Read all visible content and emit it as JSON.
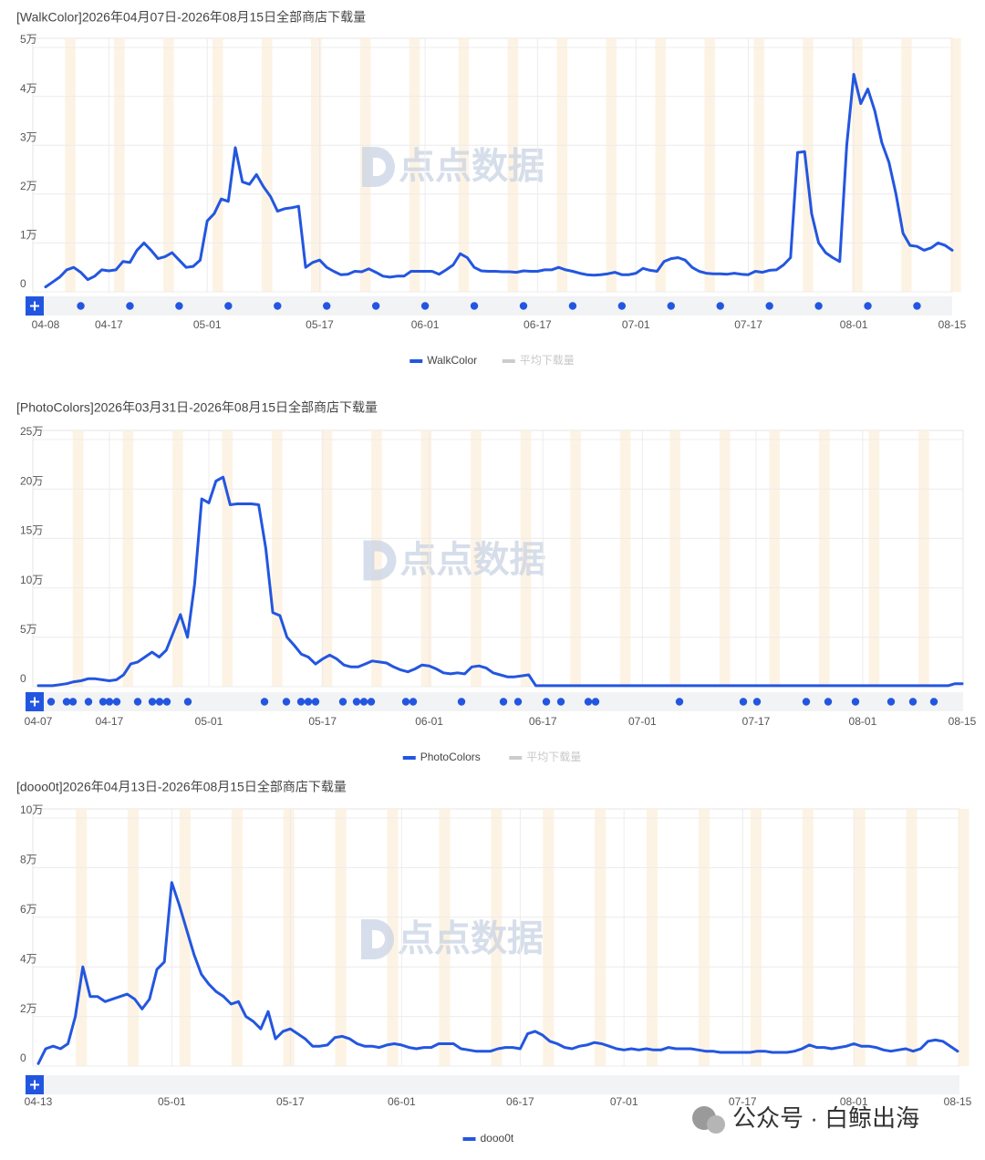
{
  "chart_data": [
    {
      "type": "line",
      "title": "[WalkColor]2026年04月07日-2026年08月15日全部商店下载量",
      "watermark": "点点数据",
      "categories": [
        "04-08",
        null,
        null,
        null,
        null,
        null,
        null,
        null,
        null,
        "04-17",
        null,
        null,
        null,
        null,
        null,
        null,
        null,
        null,
        null,
        null,
        null,
        null,
        null,
        "05-01",
        null,
        null,
        null,
        null,
        null,
        null,
        null,
        null,
        null,
        null,
        null,
        null,
        null,
        null,
        null,
        "05-17",
        null,
        null,
        null,
        null,
        null,
        null,
        null,
        null,
        null,
        null,
        null,
        null,
        null,
        null,
        "06-01",
        null,
        null,
        null,
        null,
        null,
        null,
        null,
        null,
        null,
        null,
        null,
        null,
        null,
        null,
        null,
        "06-17",
        null,
        null,
        null,
        null,
        null,
        null,
        null,
        null,
        null,
        null,
        null,
        null,
        null,
        "07-01",
        null,
        null,
        null,
        null,
        null,
        null,
        null,
        null,
        null,
        null,
        null,
        null,
        null,
        null,
        null,
        "07-17",
        null,
        null,
        null,
        null,
        null,
        null,
        null,
        null,
        null,
        null,
        null,
        null,
        null,
        null,
        "08-01",
        null,
        null,
        null,
        null,
        null,
        null,
        null,
        null,
        null,
        null,
        null,
        null,
        null,
        "08-15"
      ],
      "series": [
        {
          "name": "WalkColor",
          "color": "#2356e0",
          "values": [
            0.1,
            0.2,
            0.3,
            0.45,
            0.5,
            0.4,
            0.25,
            0.32,
            0.45,
            0.43,
            0.45,
            0.62,
            0.6,
            0.85,
            1.0,
            0.85,
            0.68,
            0.72,
            0.8,
            0.65,
            0.5,
            0.52,
            0.65,
            1.45,
            1.6,
            1.9,
            1.85,
            2.95,
            2.25,
            2.2,
            2.4,
            2.15,
            1.95,
            1.65,
            1.7,
            1.72,
            1.75,
            0.5,
            0.6,
            0.65,
            0.5,
            0.42,
            0.35,
            0.36,
            0.42,
            0.41,
            0.47,
            0.4,
            0.32,
            0.3,
            0.32,
            0.32,
            0.42,
            0.42,
            0.42,
            0.42,
            0.36,
            0.45,
            0.55,
            0.78,
            0.7,
            0.5,
            0.43,
            0.42,
            0.42,
            0.41,
            0.41,
            0.4,
            0.43,
            0.42,
            0.42,
            0.45,
            0.45,
            0.5,
            0.45,
            0.42,
            0.38,
            0.35,
            0.34,
            0.35,
            0.37,
            0.4,
            0.35,
            0.35,
            0.38,
            0.48,
            0.44,
            0.42,
            0.62,
            0.68,
            0.7,
            0.65,
            0.5,
            0.42,
            0.38,
            0.37,
            0.37,
            0.36,
            0.38,
            0.36,
            0.35,
            0.42,
            0.4,
            0.44,
            0.45,
            0.55,
            0.7,
            2.85,
            2.87,
            1.6,
            1.0,
            0.8,
            0.7,
            0.62,
            3.0,
            4.45,
            3.85,
            4.15,
            3.7,
            3.05,
            2.65,
            2.0,
            1.2,
            0.95,
            0.93,
            0.85,
            0.9,
            1.0,
            0.95,
            0.85
          ]
        }
      ],
      "inactive_legend": {
        "name": "平均下载量",
        "color": "#cccccc"
      },
      "ylim": [
        0,
        5
      ],
      "yticks": [
        0,
        {
          "value": 1,
          "label": "1万"
        },
        {
          "value": 2,
          "label": "2万"
        },
        {
          "value": 3,
          "label": "3万"
        },
        {
          "value": 4,
          "label": "4万"
        },
        {
          "value": 5,
          "label": "5万"
        }
      ],
      "grid": true
    },
    {
      "type": "line",
      "title": "[PhotoColors]2026年03月31日-2026年08月15日全部商店下载量",
      "watermark": "点点数据",
      "categories": [
        "04-07",
        null,
        null,
        null,
        null,
        null,
        null,
        null,
        null,
        null,
        "04-17",
        null,
        null,
        null,
        null,
        null,
        null,
        null,
        null,
        null,
        null,
        null,
        null,
        null,
        "05-01",
        null,
        null,
        null,
        null,
        null,
        null,
        null,
        null,
        null,
        null,
        null,
        null,
        null,
        null,
        null,
        "05-17",
        null,
        null,
        null,
        null,
        null,
        null,
        null,
        null,
        null,
        null,
        null,
        null,
        null,
        null,
        "06-01",
        null,
        null,
        null,
        null,
        null,
        null,
        null,
        null,
        null,
        null,
        null,
        null,
        null,
        null,
        null,
        "06-17",
        null,
        null,
        null,
        null,
        null,
        null,
        null,
        null,
        null,
        null,
        null,
        null,
        null,
        "07-01",
        null,
        null,
        null,
        null,
        null,
        null,
        null,
        null,
        null,
        null,
        null,
        null,
        null,
        null,
        null,
        "07-17",
        null,
        null,
        null,
        null,
        null,
        null,
        null,
        null,
        null,
        null,
        null,
        null,
        null,
        null,
        "08-01",
        null,
        null,
        null,
        null,
        null,
        null,
        null,
        null,
        null,
        null,
        null,
        null,
        null,
        "08-15"
      ],
      "series": [
        {
          "name": "PhotoColors",
          "color": "#2356e0",
          "values": [
            0.1,
            0.1,
            0.1,
            0.2,
            0.3,
            0.5,
            0.6,
            0.8,
            0.8,
            0.7,
            0.6,
            0.7,
            1.2,
            2.3,
            2.5,
            3.0,
            3.5,
            3.0,
            3.7,
            5.5,
            7.3,
            5.0,
            10.4,
            19.0,
            18.6,
            20.8,
            21.2,
            18.4,
            18.5,
            18.5,
            18.5,
            18.4,
            14.0,
            7.5,
            7.2,
            5.0,
            4.2,
            3.3,
            3.0,
            2.3,
            2.8,
            3.2,
            2.8,
            2.2,
            2.0,
            2.0,
            2.3,
            2.6,
            2.5,
            2.4,
            2.0,
            1.7,
            1.5,
            1.8,
            2.2,
            2.1,
            1.8,
            1.4,
            1.3,
            1.4,
            1.3,
            2.0,
            2.1,
            1.9,
            1.4,
            1.2,
            1.0,
            1.0,
            1.1,
            1.2,
            0.1,
            0.1,
            0.1,
            0.1,
            0.1,
            0.1,
            0.1,
            0.1,
            0.1,
            0.1,
            0.1,
            0.1,
            0.1,
            0.1,
            0.1,
            0.1,
            0.1,
            0.1,
            0.1,
            0.1,
            0.1,
            0.1,
            0.1,
            0.1,
            0.1,
            0.1,
            0.1,
            0.1,
            0.1,
            0.1,
            0.1,
            0.1,
            0.1,
            0.1,
            0.1,
            0.1,
            0.1,
            0.1,
            0.1,
            0.1,
            0.1,
            0.1,
            0.1,
            0.1,
            0.1,
            0.1,
            0.1,
            0.1,
            0.1,
            0.1,
            0.1,
            0.1,
            0.1,
            0.1,
            0.1,
            0.1,
            0.1,
            0.1,
            0.1,
            0.3,
            0.3
          ]
        }
      ],
      "inactive_legend": {
        "name": "平均下载量",
        "color": "#cccccc"
      },
      "ylim": [
        0,
        25
      ],
      "yticks": [
        0,
        {
          "value": 5,
          "label": "5万"
        },
        {
          "value": 10,
          "label": "10万"
        },
        {
          "value": 15,
          "label": "15万"
        },
        {
          "value": 20,
          "label": "20万"
        },
        {
          "value": 25,
          "label": "25万"
        }
      ],
      "grid": true
    },
    {
      "type": "line",
      "title": "[dooo0t]2026年04月13日-2026年08月15日全部商店下载量",
      "watermark": "点点数据",
      "categories": [
        "04-13",
        null,
        null,
        null,
        null,
        null,
        null,
        null,
        null,
        null,
        null,
        null,
        null,
        null,
        null,
        null,
        null,
        null,
        "05-01",
        null,
        null,
        null,
        null,
        null,
        null,
        null,
        null,
        null,
        null,
        null,
        null,
        null,
        null,
        null,
        "05-17",
        null,
        null,
        null,
        null,
        null,
        null,
        null,
        null,
        null,
        null,
        null,
        null,
        null,
        null,
        "06-01",
        null,
        null,
        null,
        null,
        null,
        null,
        null,
        null,
        null,
        null,
        null,
        null,
        null,
        null,
        null,
        "06-17",
        null,
        null,
        null,
        null,
        null,
        null,
        null,
        null,
        null,
        null,
        null,
        null,
        null,
        "07-01",
        null,
        null,
        null,
        null,
        null,
        null,
        null,
        null,
        null,
        null,
        null,
        null,
        null,
        null,
        null,
        "07-17",
        null,
        null,
        null,
        null,
        null,
        null,
        null,
        null,
        null,
        null,
        null,
        null,
        null,
        null,
        "08-01",
        null,
        null,
        null,
        null,
        null,
        null,
        null,
        null,
        null,
        null,
        null,
        null,
        null,
        "08-15"
      ],
      "series": [
        {
          "name": "dooo0t",
          "color": "#2356e0",
          "values": [
            0.1,
            0.7,
            0.8,
            0.7,
            0.9,
            2.0,
            4.0,
            2.8,
            2.8,
            2.6,
            2.7,
            2.8,
            2.9,
            2.7,
            2.3,
            2.7,
            3.9,
            4.2,
            7.4,
            6.5,
            5.5,
            4.5,
            3.7,
            3.3,
            3.0,
            2.8,
            2.5,
            2.6,
            2.0,
            1.8,
            1.5,
            2.2,
            1.1,
            1.4,
            1.5,
            1.3,
            1.1,
            0.8,
            0.8,
            0.85,
            1.15,
            1.2,
            1.1,
            0.9,
            0.8,
            0.8,
            0.75,
            0.85,
            0.9,
            0.85,
            0.75,
            0.7,
            0.75,
            0.75,
            0.9,
            0.9,
            0.9,
            0.7,
            0.65,
            0.6,
            0.6,
            0.6,
            0.7,
            0.75,
            0.75,
            0.7,
            1.3,
            1.4,
            1.25,
            1.0,
            0.9,
            0.75,
            0.7,
            0.8,
            0.85,
            0.95,
            0.9,
            0.8,
            0.7,
            0.65,
            0.7,
            0.65,
            0.7,
            0.65,
            0.65,
            0.75,
            0.7,
            0.7,
            0.7,
            0.65,
            0.6,
            0.6,
            0.55,
            0.55,
            0.55,
            0.55,
            0.55,
            0.6,
            0.6,
            0.55,
            0.55,
            0.55,
            0.6,
            0.7,
            0.85,
            0.75,
            0.75,
            0.7,
            0.75,
            0.8,
            0.9,
            0.8,
            0.8,
            0.75,
            0.65,
            0.6,
            0.65,
            0.7,
            0.6,
            0.7,
            1.0,
            1.05,
            1.0,
            0.8,
            0.6
          ]
        }
      ],
      "ylim": [
        0,
        10
      ],
      "yticks": [
        0,
        {
          "value": 2,
          "label": "2万"
        },
        {
          "value": 4,
          "label": "4万"
        },
        {
          "value": 6,
          "label": "6万"
        },
        {
          "value": 8,
          "label": "8万"
        },
        {
          "value": 10,
          "label": "10万"
        }
      ],
      "grid": true
    }
  ],
  "footer": "公众号 · 白鲸出海"
}
